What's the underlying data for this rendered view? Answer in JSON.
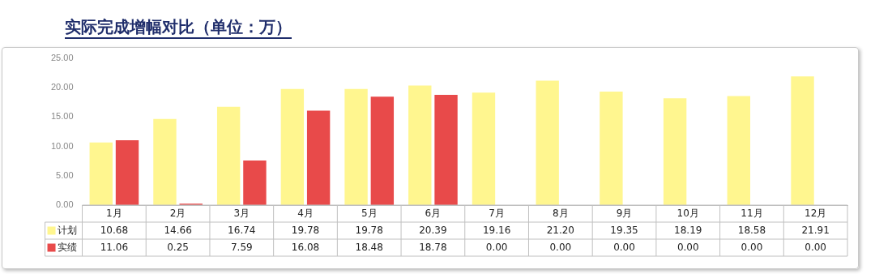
{
  "chart_data": {
    "type": "bar",
    "title": "实际完成增幅对比（单位：万）",
    "categories": [
      "1月",
      "2月",
      "3月",
      "4月",
      "5月",
      "6月",
      "7月",
      "8月",
      "9月",
      "10月",
      "11月",
      "12月"
    ],
    "series": [
      {
        "name": "计划",
        "color": "#fff68f",
        "values": [
          10.68,
          14.66,
          16.74,
          19.78,
          19.78,
          20.39,
          19.16,
          21.2,
          19.35,
          18.19,
          18.58,
          21.91
        ],
        "value_labels": [
          "10.68",
          "14.66",
          "16.74",
          "19.78",
          "19.78",
          "20.39",
          "19.16",
          "21.20",
          "19.35",
          "18.19",
          "18.58",
          "21.91"
        ]
      },
      {
        "name": "实绩",
        "color": "#e84a4a",
        "values": [
          11.06,
          0.25,
          7.59,
          16.08,
          18.48,
          18.78,
          0,
          0,
          0,
          0,
          0,
          0
        ],
        "value_labels": [
          "11.06",
          "0.25",
          "7.59",
          "16.08",
          "18.48",
          "18.78",
          "0.00",
          "0.00",
          "0.00",
          "0.00",
          "0.00",
          "0.00"
        ]
      }
    ],
    "ylim": [
      0,
      25
    ],
    "yticks": [
      {
        "value": 0,
        "label": "0.00"
      },
      {
        "value": 5,
        "label": "5.00"
      },
      {
        "value": 10,
        "label": "10.00"
      },
      {
        "value": 15,
        "label": "15.00"
      },
      {
        "value": 20,
        "label": "20.00"
      },
      {
        "value": 25,
        "label": "25.00"
      }
    ],
    "legend": "bottom",
    "data_labels": true
  }
}
